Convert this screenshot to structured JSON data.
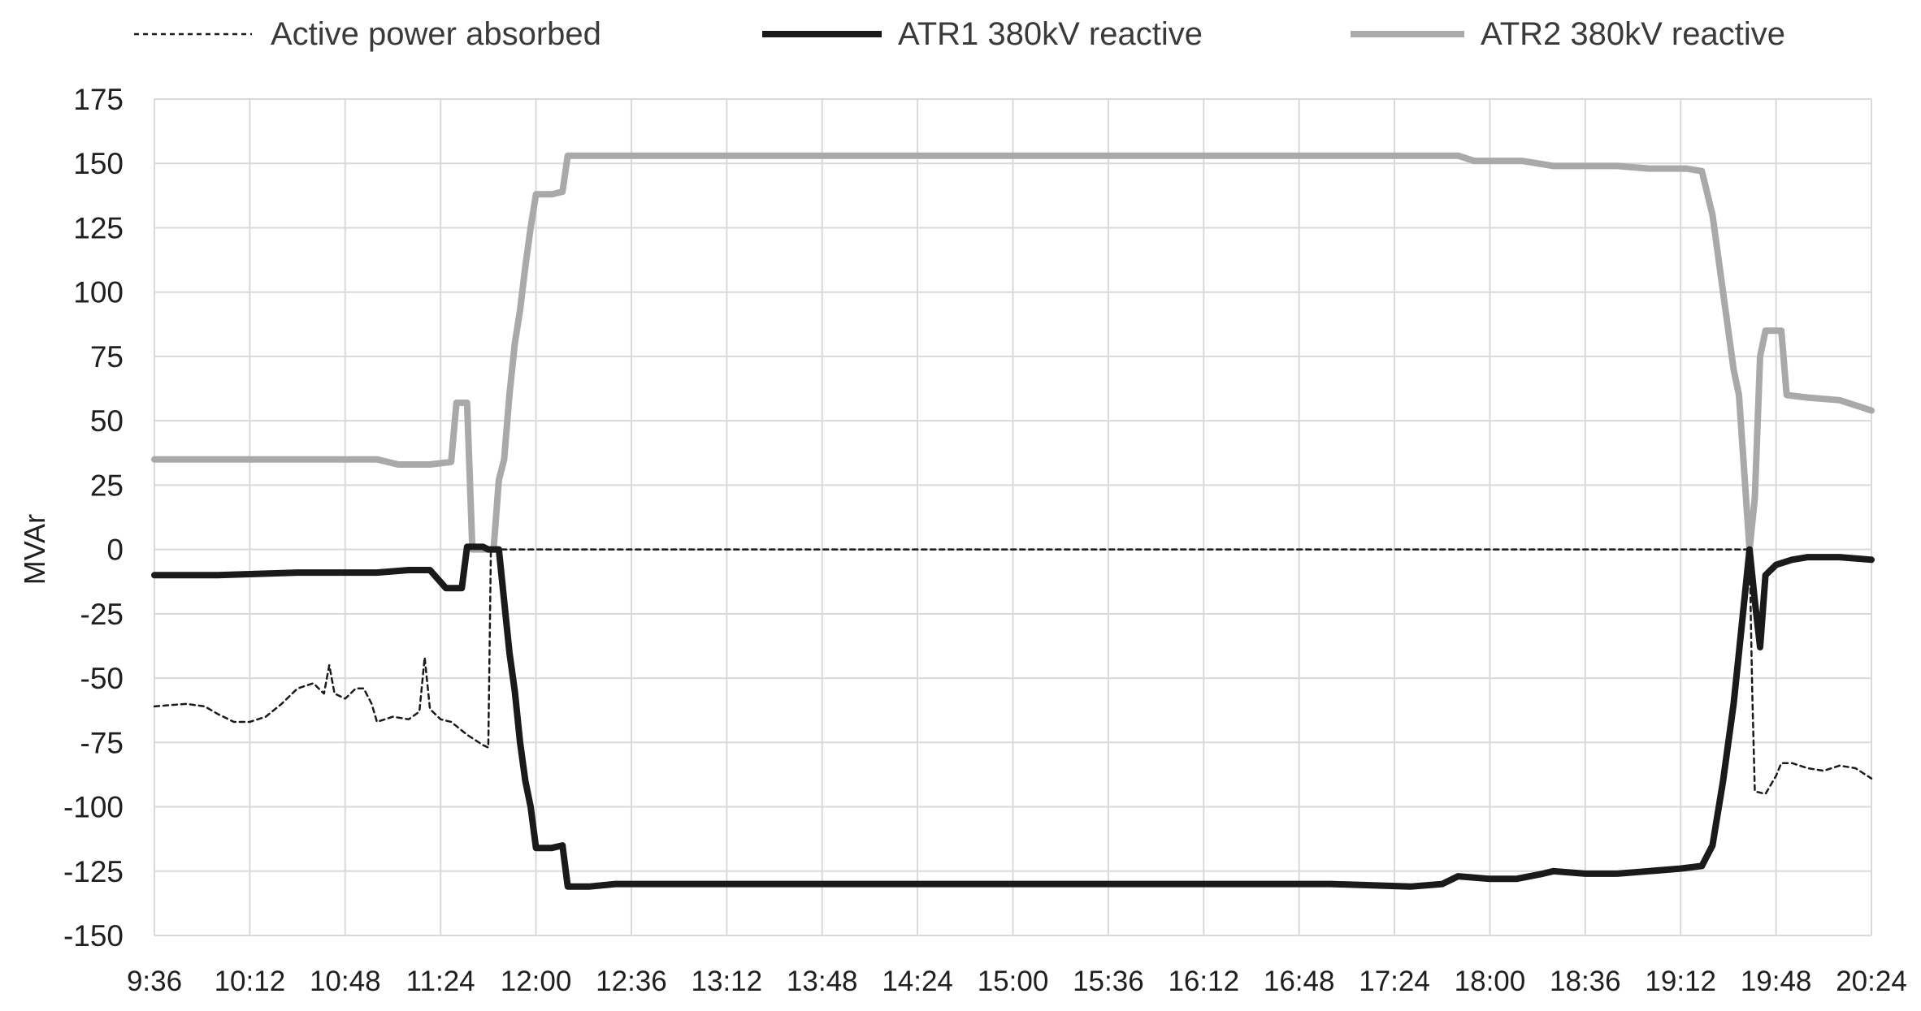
{
  "chart_data": {
    "type": "line",
    "title": "",
    "xlabel": "",
    "ylabel": "MVAr",
    "ylim": [
      -150,
      175
    ],
    "y_ticks": [
      175,
      150,
      125,
      100,
      75,
      50,
      25,
      0,
      -25,
      -50,
      -75,
      -100,
      -125,
      -150
    ],
    "x_range": [
      "9:36",
      "20:24"
    ],
    "x_tick_labels": [
      "9:36",
      "10:12",
      "10:48",
      "11:24",
      "12:00",
      "12:36",
      "13:12",
      "13:48",
      "14:24",
      "15:00",
      "15:36",
      "16:12",
      "16:48",
      "17:24",
      "18:00",
      "18:36",
      "19:12",
      "19:48",
      "20:24"
    ],
    "grid": true,
    "legend_position": "top",
    "series": [
      {
        "name": "Active power absorbed",
        "style": "dashed",
        "color": "#1a1a1a",
        "points": [
          [
            "9:36",
            -61
          ],
          [
            "9:48",
            -60
          ],
          [
            "9:55",
            -61
          ],
          [
            "10:00",
            -64
          ],
          [
            "10:06",
            -67
          ],
          [
            "10:12",
            -67
          ],
          [
            "10:18",
            -65
          ],
          [
            "10:24",
            -60
          ],
          [
            "10:30",
            -54
          ],
          [
            "10:36",
            -52
          ],
          [
            "10:40",
            -56
          ],
          [
            "10:42",
            -45
          ],
          [
            "10:44",
            -56
          ],
          [
            "10:48",
            -58
          ],
          [
            "10:52",
            -54
          ],
          [
            "10:55",
            -54
          ],
          [
            "10:58",
            -60
          ],
          [
            "11:00",
            -67
          ],
          [
            "11:06",
            -65
          ],
          [
            "11:12",
            -66
          ],
          [
            "11:16",
            -63
          ],
          [
            "11:18",
            -42
          ],
          [
            "11:20",
            -62
          ],
          [
            "11:24",
            -66
          ],
          [
            "11:28",
            -67
          ],
          [
            "11:34",
            -72
          ],
          [
            "11:40",
            -76
          ],
          [
            "11:42",
            -77
          ],
          [
            "11:43",
            0
          ],
          [
            "19:38",
            0
          ],
          [
            "19:39",
            -55
          ],
          [
            "19:40",
            -94
          ],
          [
            "19:44",
            -95
          ],
          [
            "19:48",
            -88
          ],
          [
            "19:50",
            -83
          ],
          [
            "19:54",
            -83
          ],
          [
            "20:00",
            -85
          ],
          [
            "20:06",
            -86
          ],
          [
            "20:12",
            -84
          ],
          [
            "20:18",
            -85
          ],
          [
            "20:24",
            -89
          ]
        ]
      },
      {
        "name": "ATR1 380kV reactive",
        "style": "solid",
        "color": "#1a1a1a",
        "points": [
          [
            "9:36",
            -10
          ],
          [
            "10:00",
            -10
          ],
          [
            "10:30",
            -9
          ],
          [
            "11:00",
            -9
          ],
          [
            "11:12",
            -8
          ],
          [
            "11:20",
            -8
          ],
          [
            "11:26",
            -15
          ],
          [
            "11:32",
            -15
          ],
          [
            "11:34",
            1
          ],
          [
            "11:40",
            1
          ],
          [
            "11:42",
            0
          ],
          [
            "11:46",
            0
          ],
          [
            "11:48",
            -20
          ],
          [
            "11:50",
            -40
          ],
          [
            "11:52",
            -55
          ],
          [
            "11:54",
            -75
          ],
          [
            "11:56",
            -90
          ],
          [
            "11:58",
            -100
          ],
          [
            "12:00",
            -116
          ],
          [
            "12:06",
            -116
          ],
          [
            "12:10",
            -115
          ],
          [
            "12:12",
            -131
          ],
          [
            "12:20",
            -131
          ],
          [
            "12:30",
            -130
          ],
          [
            "13:00",
            -130
          ],
          [
            "14:00",
            -130
          ],
          [
            "15:00",
            -130
          ],
          [
            "16:00",
            -130
          ],
          [
            "17:00",
            -130
          ],
          [
            "17:30",
            -131
          ],
          [
            "17:42",
            -130
          ],
          [
            "17:48",
            -127
          ],
          [
            "18:00",
            -128
          ],
          [
            "18:10",
            -128
          ],
          [
            "18:20",
            -126
          ],
          [
            "18:24",
            -125
          ],
          [
            "18:36",
            -126
          ],
          [
            "18:48",
            -126
          ],
          [
            "19:00",
            -125
          ],
          [
            "19:12",
            -124
          ],
          [
            "19:20",
            -123
          ],
          [
            "19:24",
            -115
          ],
          [
            "19:28",
            -90
          ],
          [
            "19:32",
            -60
          ],
          [
            "19:34",
            -40
          ],
          [
            "19:36",
            -20
          ],
          [
            "19:38",
            0
          ],
          [
            "19:40",
            -20
          ],
          [
            "19:42",
            -38
          ],
          [
            "19:44",
            -10
          ],
          [
            "19:48",
            -6
          ],
          [
            "19:54",
            -4
          ],
          [
            "20:00",
            -3
          ],
          [
            "20:12",
            -3
          ],
          [
            "20:24",
            -4
          ]
        ]
      },
      {
        "name": "ATR2 380kV reactive",
        "style": "solid",
        "color": "#a9a9a9",
        "points": [
          [
            "9:36",
            35
          ],
          [
            "10:00",
            35
          ],
          [
            "10:30",
            35
          ],
          [
            "11:00",
            35
          ],
          [
            "11:08",
            33
          ],
          [
            "11:20",
            33
          ],
          [
            "11:28",
            34
          ],
          [
            "11:30",
            57
          ],
          [
            "11:34",
            57
          ],
          [
            "11:36",
            0
          ],
          [
            "11:44",
            0
          ],
          [
            "11:46",
            27
          ],
          [
            "11:48",
            35
          ],
          [
            "11:50",
            60
          ],
          [
            "11:52",
            80
          ],
          [
            "11:54",
            93
          ],
          [
            "11:56",
            110
          ],
          [
            "11:58",
            125
          ],
          [
            "12:00",
            138
          ],
          [
            "12:06",
            138
          ],
          [
            "12:10",
            139
          ],
          [
            "12:12",
            153
          ],
          [
            "13:00",
            153
          ],
          [
            "14:00",
            153
          ],
          [
            "15:00",
            153
          ],
          [
            "16:00",
            153
          ],
          [
            "17:00",
            153
          ],
          [
            "17:48",
            153
          ],
          [
            "17:54",
            151
          ],
          [
            "18:12",
            151
          ],
          [
            "18:24",
            149
          ],
          [
            "18:48",
            149
          ],
          [
            "19:00",
            148
          ],
          [
            "19:14",
            148
          ],
          [
            "19:20",
            147
          ],
          [
            "19:24",
            130
          ],
          [
            "19:28",
            100
          ],
          [
            "19:32",
            70
          ],
          [
            "19:34",
            60
          ],
          [
            "19:36",
            30
          ],
          [
            "19:38",
            0
          ],
          [
            "19:40",
            20
          ],
          [
            "19:42",
            75
          ],
          [
            "19:44",
            85
          ],
          [
            "19:50",
            85
          ],
          [
            "19:52",
            60
          ],
          [
            "20:00",
            59
          ],
          [
            "20:12",
            58
          ],
          [
            "20:24",
            54
          ]
        ]
      }
    ]
  }
}
